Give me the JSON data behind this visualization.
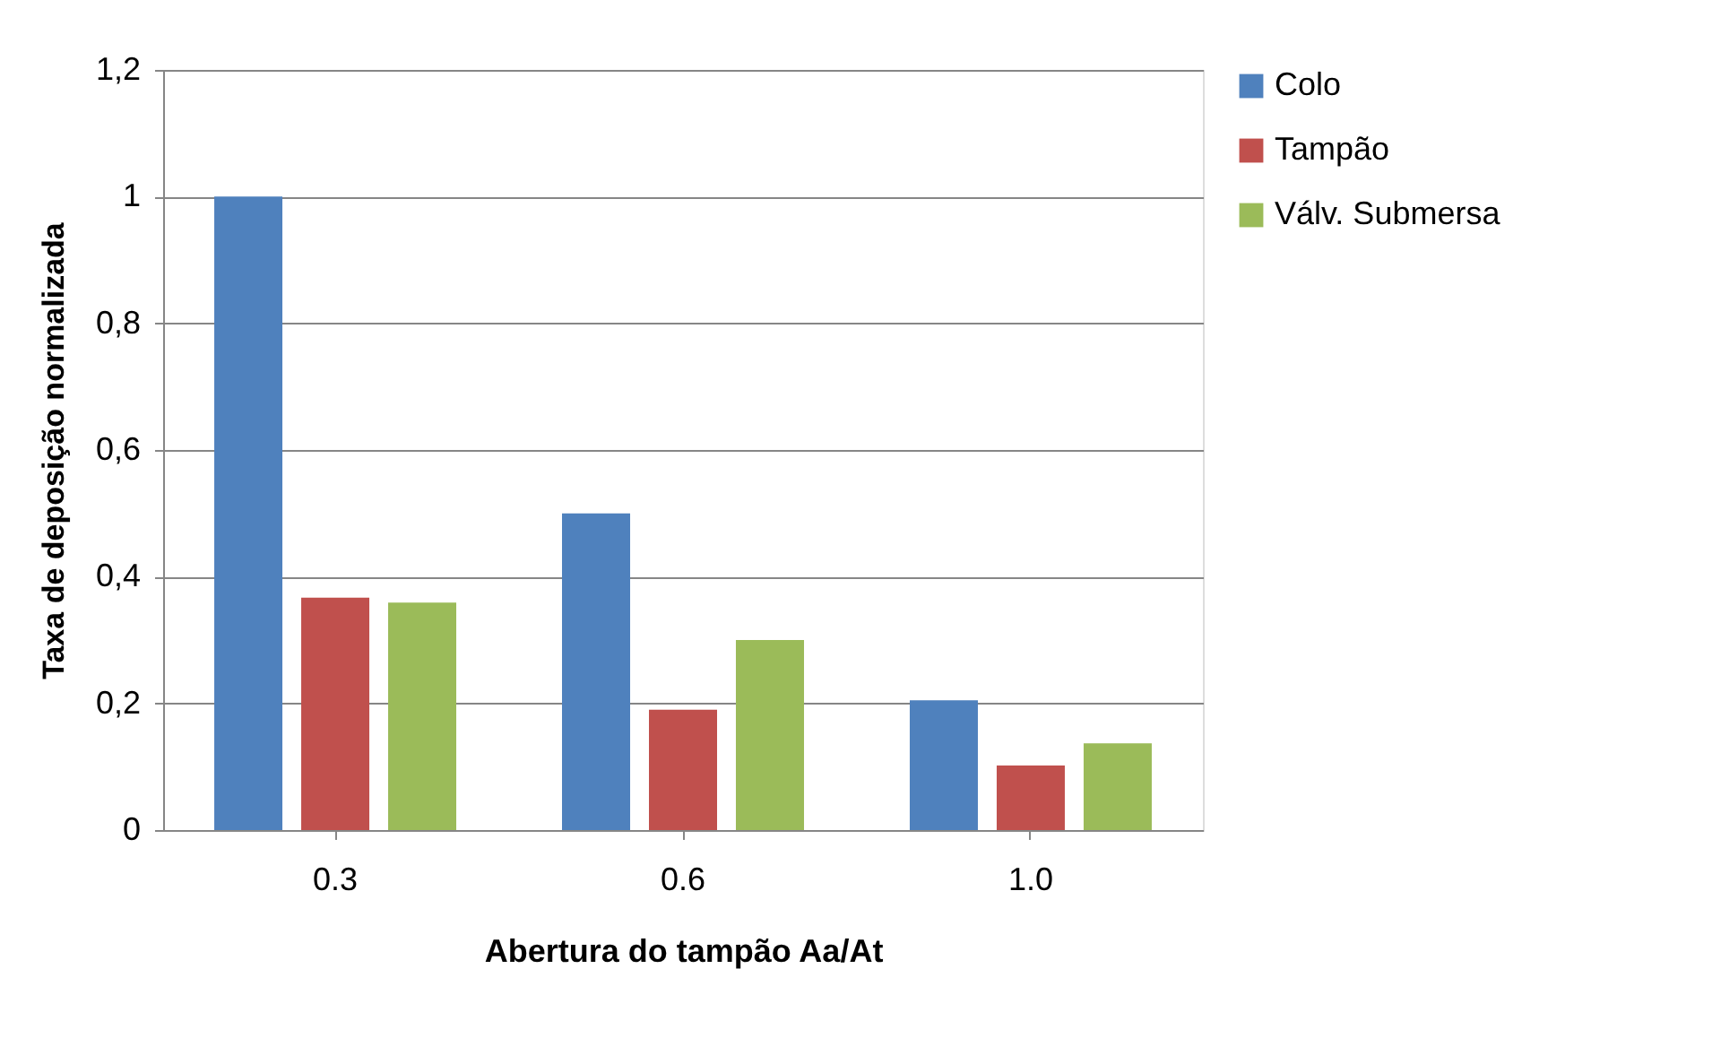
{
  "chart_data": {
    "type": "bar",
    "xlabel": "Abertura do tampão Aa/At",
    "ylabel": "Taxa de deposição normalizada",
    "categories": [
      "0.3",
      "0.6",
      "1.0"
    ],
    "series": [
      {
        "name": "Colo",
        "color": "#4f81bd",
        "values": [
          1.0,
          0.5,
          0.205
        ]
      },
      {
        "name": "Tampão",
        "color": "#c0504d",
        "values": [
          0.367,
          0.19,
          0.102
        ]
      },
      {
        "name": "Válv. Submersa",
        "color": "#9bbb59",
        "values": [
          0.359,
          0.3,
          0.137
        ]
      }
    ],
    "ylim": [
      0,
      1.2
    ],
    "yticks": [
      0,
      {
        "value": 0.2,
        "label": "0,2"
      },
      {
        "value": 0.4,
        "label": "0,4"
      },
      {
        "value": 0.6,
        "label": "0,6"
      },
      {
        "value": 0.8,
        "label": "0,8"
      },
      1,
      {
        "value": 1.2,
        "label": "1,2"
      }
    ],
    "grid": "y",
    "legend": "right"
  }
}
